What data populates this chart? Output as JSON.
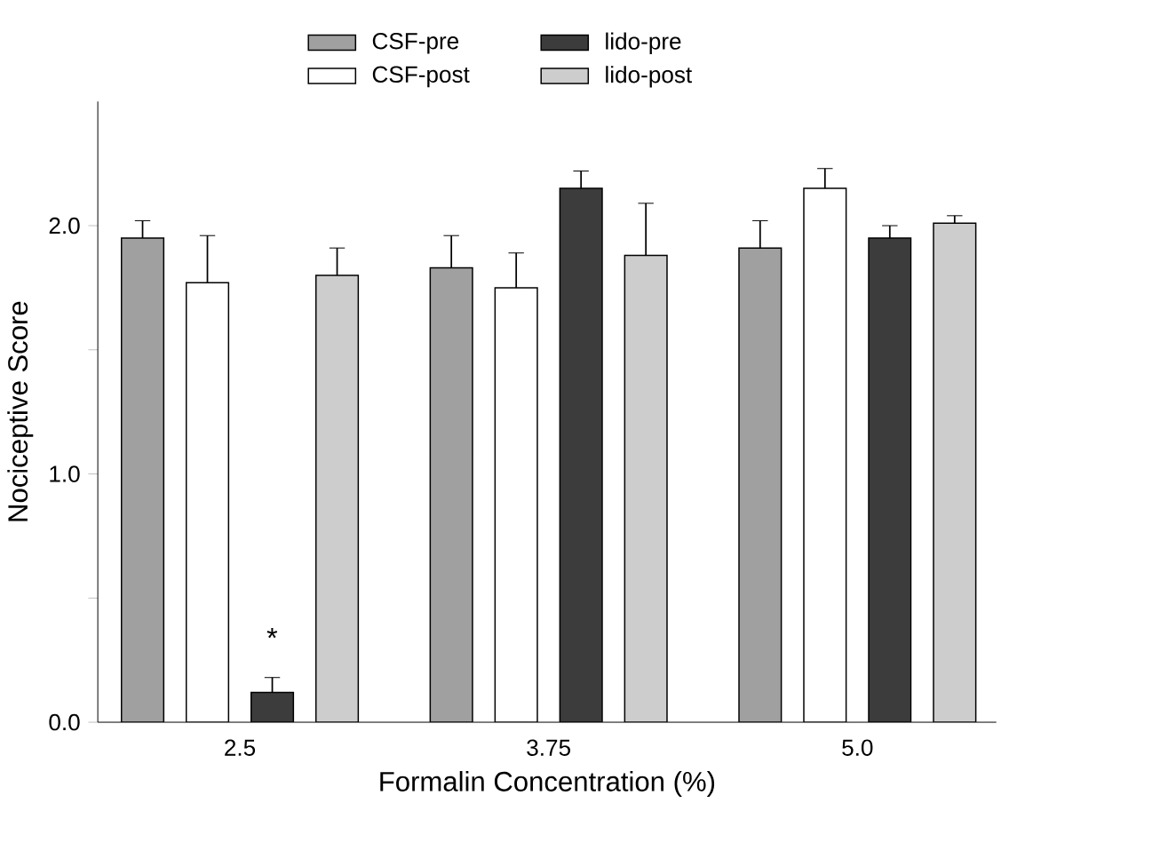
{
  "chart_data": {
    "type": "bar",
    "xlabel": "Formalin Concentration (%)",
    "ylabel": "Nociceptive Score",
    "categories": [
      "2.5",
      "3.75",
      "5.0"
    ],
    "series": [
      {
        "name": "CSF-pre",
        "color": "#a0a0a0",
        "values": [
          1.95,
          1.83,
          1.91
        ],
        "errors": [
          0.07,
          0.13,
          0.11
        ]
      },
      {
        "name": "CSF-post",
        "color": "#ffffff",
        "values": [
          1.77,
          1.75,
          2.15
        ],
        "errors": [
          0.19,
          0.14,
          0.08
        ]
      },
      {
        "name": "lido-pre",
        "color": "#3c3c3c",
        "values": [
          0.12,
          2.15,
          1.95
        ],
        "errors": [
          0.06,
          0.07,
          0.05
        ]
      },
      {
        "name": "lido-post",
        "color": "#cdcdcd",
        "values": [
          1.8,
          1.88,
          2.01
        ],
        "errors": [
          0.11,
          0.21,
          0.03
        ]
      }
    ],
    "ylim": [
      0,
      2.5
    ],
    "yticks": [
      {
        "value": 0,
        "label": "0.0"
      },
      {
        "value": 0.5,
        "label": null
      },
      {
        "value": 1.0,
        "label": "1.0"
      },
      {
        "value": 1.5,
        "label": null
      },
      {
        "value": 2.0,
        "label": "2.0"
      }
    ],
    "annotations": [
      "*"
    ],
    "legend": "top"
  }
}
